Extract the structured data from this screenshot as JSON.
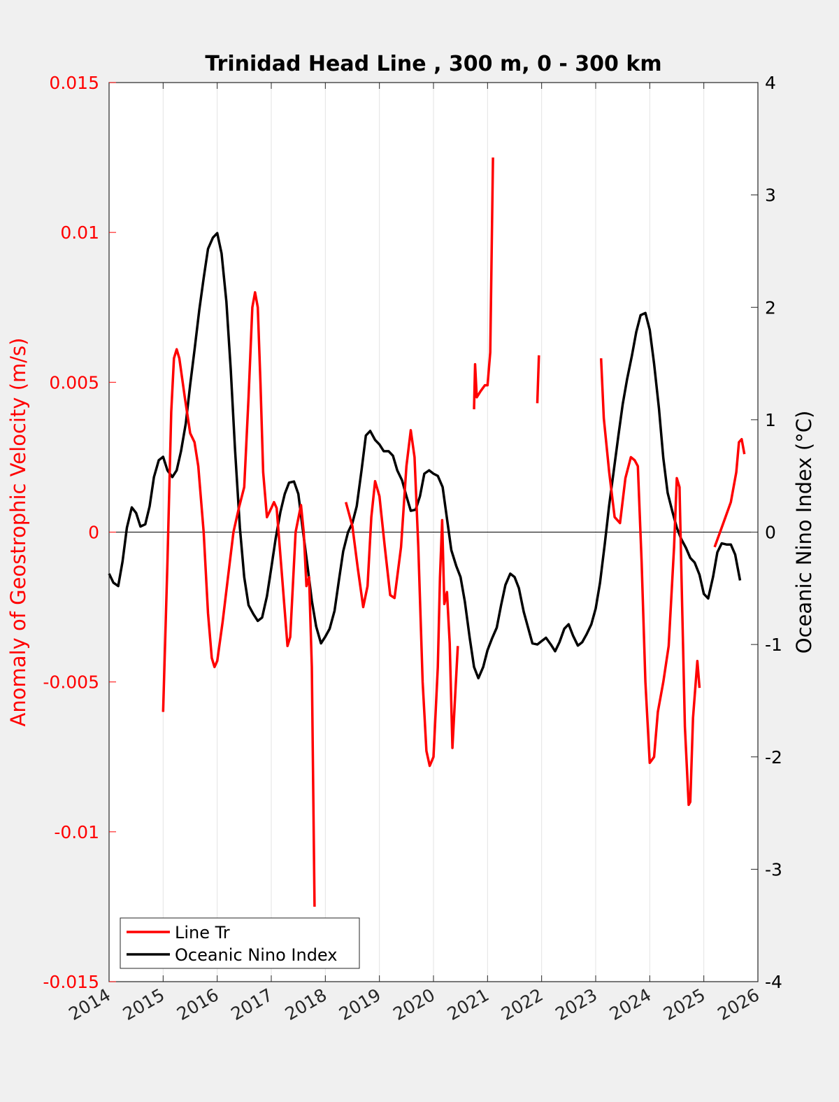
{
  "chart_data": {
    "type": "line",
    "title": "Trinidad Head Line , 300 m, 0 - 300 km",
    "xlabel": "",
    "ylabel_left": "Anomaly of Geostrophic Velocity (m/s)",
    "ylabel_right": "Oceanic Nino Index (°C)",
    "xlim": [
      2014,
      2026
    ],
    "ylim_left": [
      -0.015,
      0.015
    ],
    "ylim_right": [
      -4,
      4
    ],
    "x_ticks": [
      2014,
      2015,
      2016,
      2017,
      2018,
      2019,
      2020,
      2021,
      2022,
      2023,
      2024,
      2025,
      2026
    ],
    "x_tick_labels": [
      "2014",
      "2015",
      "2016",
      "2017",
      "2018",
      "2019",
      "2020",
      "2021",
      "2022",
      "2023",
      "2024",
      "2025",
      "2026"
    ],
    "y_left_ticks": [
      0.015,
      0.01,
      0.005,
      0,
      -0.005,
      -0.01,
      -0.015
    ],
    "y_left_tick_labels": [
      "0.015",
      "0.01",
      "0.005",
      "0",
      "-0.005",
      "-0.01",
      "-0.015"
    ],
    "y_right_ticks": [
      4,
      3,
      2,
      1,
      0,
      -1,
      -2,
      -3,
      -4
    ],
    "y_right_tick_labels": [
      "4",
      "3",
      "2",
      "1",
      "0",
      "-1",
      "-2",
      "-3",
      "-4"
    ],
    "grid": "vertical",
    "legend_position": "bottom-left",
    "colors": {
      "line_tr": "#ff0000",
      "oni": "#000000",
      "left_axis": "#ff0000",
      "right_axis": "#000000"
    },
    "series": [
      {
        "name": "Line Tr",
        "axis": "left",
        "segments": [
          [
            [
              2015.0,
              -0.006
            ],
            [
              2015.08,
              -0.001
            ],
            [
              2015.15,
              0.004
            ],
            [
              2015.2,
              0.0058
            ],
            [
              2015.25,
              0.0061
            ],
            [
              2015.3,
              0.0058
            ],
            [
              2015.4,
              0.0045
            ],
            [
              2015.5,
              0.0033
            ],
            [
              2015.58,
              0.003
            ],
            [
              2015.65,
              0.0022
            ],
            [
              2015.75,
              0.0
            ],
            [
              2015.83,
              -0.0027
            ],
            [
              2015.9,
              -0.0042
            ],
            [
              2015.95,
              -0.0045
            ],
            [
              2016.0,
              -0.0043
            ],
            [
              2016.1,
              -0.003
            ],
            [
              2016.2,
              -0.0015
            ],
            [
              2016.3,
              0.0
            ],
            [
              2016.4,
              0.0008
            ],
            [
              2016.5,
              0.0015
            ],
            [
              2016.58,
              0.0045
            ],
            [
              2016.65,
              0.0075
            ],
            [
              2016.7,
              0.008
            ],
            [
              2016.75,
              0.0075
            ],
            [
              2016.8,
              0.005
            ],
            [
              2016.85,
              0.002
            ],
            [
              2016.92,
              0.0005
            ],
            [
              2017.0,
              0.0008
            ],
            [
              2017.05,
              0.001
            ],
            [
              2017.1,
              0.0008
            ],
            [
              2017.2,
              -0.0015
            ],
            [
              2017.3,
              -0.0038
            ],
            [
              2017.35,
              -0.0035
            ],
            [
              2017.45,
              0.0
            ],
            [
              2017.55,
              0.0009
            ],
            [
              2017.6,
              0.0
            ],
            [
              2017.65,
              -0.0018
            ],
            [
              2017.7,
              -0.0015
            ],
            [
              2017.75,
              -0.0045
            ],
            [
              2017.8,
              -0.0125
            ]
          ],
          [
            [
              2018.38,
              0.001
            ],
            [
              2018.5,
              0.0002
            ],
            [
              2018.6,
              -0.0012
            ],
            [
              2018.7,
              -0.0025
            ],
            [
              2018.78,
              -0.0018
            ],
            [
              2018.85,
              0.0005
            ],
            [
              2018.92,
              0.0017
            ],
            [
              2019.0,
              0.0012
            ],
            [
              2019.1,
              -0.0005
            ],
            [
              2019.2,
              -0.0021
            ],
            [
              2019.28,
              -0.0022
            ],
            [
              2019.4,
              -0.0005
            ],
            [
              2019.5,
              0.0022
            ],
            [
              2019.58,
              0.0034
            ],
            [
              2019.65,
              0.0025
            ],
            [
              2019.72,
              -0.0005
            ],
            [
              2019.8,
              -0.005
            ],
            [
              2019.87,
              -0.0073
            ],
            [
              2019.93,
              -0.0078
            ],
            [
              2020.0,
              -0.0075
            ],
            [
              2020.08,
              -0.0045
            ],
            [
              2020.12,
              -0.0015
            ],
            [
              2020.16,
              0.0004
            ],
            [
              2020.2,
              -0.0024
            ],
            [
              2020.25,
              -0.002
            ],
            [
              2020.3,
              -0.0037
            ],
            [
              2020.35,
              -0.0072
            ],
            [
              2020.4,
              -0.0055
            ],
            [
              2020.45,
              -0.0038
            ]
          ],
          [
            [
              2020.75,
              0.0041
            ],
            [
              2020.77,
              0.0056
            ],
            [
              2020.8,
              0.0045
            ],
            [
              2020.87,
              0.0047
            ],
            [
              2020.95,
              0.0049
            ],
            [
              2021.0,
              0.0049
            ],
            [
              2021.05,
              0.006
            ],
            [
              2021.1,
              0.0125
            ]
          ],
          [
            [
              2021.92,
              0.0043
            ],
            [
              2021.95,
              0.0059
            ]
          ],
          [
            [
              2023.1,
              0.0058
            ],
            [
              2023.15,
              0.0038
            ],
            [
              2023.25,
              0.002
            ],
            [
              2023.35,
              0.0005
            ],
            [
              2023.45,
              0.0003
            ],
            [
              2023.55,
              0.0018
            ],
            [
              2023.65,
              0.0025
            ],
            [
              2023.72,
              0.0024
            ],
            [
              2023.78,
              0.0022
            ],
            [
              2023.85,
              -0.001
            ],
            [
              2023.92,
              -0.005
            ],
            [
              2024.0,
              -0.0077
            ],
            [
              2024.08,
              -0.0075
            ],
            [
              2024.15,
              -0.006
            ],
            [
              2024.25,
              -0.005
            ],
            [
              2024.35,
              -0.0038
            ],
            [
              2024.45,
              -0.0005
            ],
            [
              2024.5,
              0.0018
            ],
            [
              2024.55,
              0.0015
            ],
            [
              2024.6,
              -0.0025
            ],
            [
              2024.65,
              -0.0065
            ],
            [
              2024.72,
              -0.0091
            ],
            [
              2024.75,
              -0.009
            ],
            [
              2024.8,
              -0.0062
            ],
            [
              2024.88,
              -0.0043
            ],
            [
              2024.92,
              -0.0052
            ]
          ],
          [
            [
              2025.2,
              -0.0005
            ],
            [
              2025.3,
              0.0
            ],
            [
              2025.4,
              0.0005
            ],
            [
              2025.5,
              0.001
            ],
            [
              2025.6,
              0.002
            ],
            [
              2025.65,
              0.003
            ],
            [
              2025.7,
              0.0031
            ],
            [
              2025.75,
              0.0026
            ]
          ]
        ]
      },
      {
        "name": "Oceanic Nino Index",
        "axis": "right",
        "x": [
          2014.0,
          2014.08,
          2014.17,
          2014.25,
          2014.33,
          2014.42,
          2014.5,
          2014.58,
          2014.67,
          2014.75,
          2014.83,
          2014.92,
          2015.0,
          2015.08,
          2015.17,
          2015.25,
          2015.33,
          2015.42,
          2015.5,
          2015.58,
          2015.67,
          2015.75,
          2015.83,
          2015.92,
          2016.0,
          2016.08,
          2016.17,
          2016.25,
          2016.33,
          2016.42,
          2016.5,
          2016.58,
          2016.67,
          2016.75,
          2016.83,
          2016.92,
          2017.0,
          2017.08,
          2017.17,
          2017.25,
          2017.33,
          2017.42,
          2017.5,
          2017.58,
          2017.67,
          2017.75,
          2017.83,
          2017.92,
          2018.0,
          2018.08,
          2018.17,
          2018.25,
          2018.33,
          2018.42,
          2018.5,
          2018.58,
          2018.67,
          2018.75,
          2018.83,
          2018.92,
          2019.0,
          2019.08,
          2019.17,
          2019.25,
          2019.33,
          2019.42,
          2019.5,
          2019.58,
          2019.67,
          2019.75,
          2019.83,
          2019.92,
          2020.0,
          2020.08,
          2020.17,
          2020.25,
          2020.33,
          2020.42,
          2020.5,
          2020.58,
          2020.67,
          2020.75,
          2020.83,
          2020.92,
          2021.0,
          2021.08,
          2021.17,
          2021.25,
          2021.33,
          2021.42,
          2021.5,
          2021.58,
          2021.67,
          2021.75,
          2021.83,
          2021.92,
          2022.0,
          2022.08,
          2022.17,
          2022.25,
          2022.33,
          2022.42,
          2022.5,
          2022.58,
          2022.67,
          2022.75,
          2022.83,
          2022.92,
          2023.0,
          2023.08,
          2023.17,
          2023.25,
          2023.33,
          2023.42,
          2023.5,
          2023.58,
          2023.67,
          2023.75,
          2023.83,
          2023.92,
          2024.0,
          2024.08,
          2024.17,
          2024.25,
          2024.33,
          2024.42,
          2024.5,
          2024.58,
          2024.67,
          2024.75,
          2024.83,
          2024.92,
          2025.0,
          2025.08,
          2025.17,
          2025.25,
          2025.33,
          2025.42,
          2025.5,
          2025.58,
          2025.67
        ],
        "values": [
          -0.37,
          -0.45,
          -0.48,
          -0.26,
          0.04,
          0.22,
          0.17,
          0.05,
          0.07,
          0.23,
          0.49,
          0.64,
          0.67,
          0.55,
          0.49,
          0.55,
          0.72,
          0.97,
          1.31,
          1.62,
          1.98,
          2.26,
          2.52,
          2.62,
          2.66,
          2.48,
          2.05,
          1.45,
          0.73,
          0.04,
          -0.4,
          -0.65,
          -0.73,
          -0.79,
          -0.76,
          -0.57,
          -0.32,
          -0.06,
          0.18,
          0.34,
          0.44,
          0.45,
          0.34,
          0.03,
          -0.3,
          -0.61,
          -0.84,
          -0.99,
          -0.93,
          -0.86,
          -0.7,
          -0.43,
          -0.17,
          0.0,
          0.08,
          0.23,
          0.55,
          0.86,
          0.9,
          0.82,
          0.78,
          0.72,
          0.72,
          0.68,
          0.55,
          0.46,
          0.32,
          0.19,
          0.2,
          0.32,
          0.52,
          0.55,
          0.52,
          0.5,
          0.4,
          0.12,
          -0.16,
          -0.3,
          -0.4,
          -0.62,
          -0.94,
          -1.2,
          -1.3,
          -1.2,
          -1.05,
          -0.95,
          -0.85,
          -0.65,
          -0.47,
          -0.37,
          -0.4,
          -0.5,
          -0.71,
          -0.85,
          -0.99,
          -1.0,
          -0.97,
          -0.94,
          -1.0,
          -1.06,
          -0.98,
          -0.86,
          -0.82,
          -0.92,
          -1.01,
          -0.98,
          -0.91,
          -0.82,
          -0.68,
          -0.45,
          -0.1,
          0.24,
          0.53,
          0.86,
          1.14,
          1.36,
          1.57,
          1.78,
          1.93,
          1.95,
          1.8,
          1.5,
          1.1,
          0.66,
          0.35,
          0.18,
          0.04,
          -0.06,
          -0.14,
          -0.23,
          -0.27,
          -0.38,
          -0.55,
          -0.59,
          -0.4,
          -0.18,
          -0.1,
          -0.11,
          -0.11,
          -0.2,
          -0.43
        ]
      }
    ]
  }
}
